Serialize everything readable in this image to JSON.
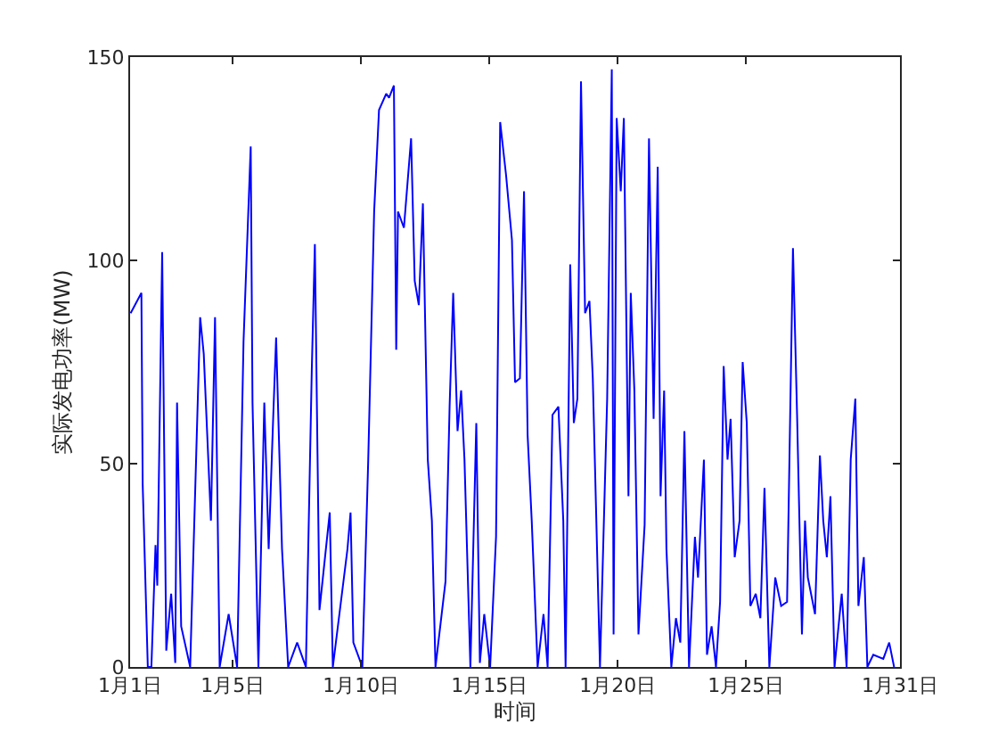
{
  "chart_data": {
    "type": "line",
    "xlabel": "时间",
    "ylabel": "实际发电功率(MW)",
    "xlim": [
      "--01-01",
      "--01-31"
    ],
    "ylim": [
      0,
      150
    ],
    "xticks": [
      {
        "value": "--01-01",
        "label": "1月1日"
      },
      {
        "value": "--01-05",
        "label": "1月5日"
      },
      {
        "value": "--01-10",
        "label": "1月10日"
      },
      {
        "value": "--01-15",
        "label": "1月15日"
      },
      {
        "value": "--01-20",
        "label": "1月20日"
      },
      {
        "value": "--01-25",
        "label": "1月25日"
      },
      {
        "value": "--01-31",
        "label": "1月31日"
      }
    ],
    "yticks": [
      0,
      50,
      100,
      150
    ],
    "grid": false,
    "marker": "none",
    "line_style": "solid",
    "series": [
      {
        "color": "#0000ff",
        "x": [
          "--01-01T00:29",
          "--01-01T10:34",
          "--01-01T11:46",
          "--01-01T16:34",
          "--01-01T19:55",
          "--01-01T23:46",
          "--01-02T01:26",
          "--01-02T06:00",
          "--01-02T09:50",
          "--01-02T14:24",
          "--01-02T18:14",
          "--01-02T19:55",
          "--01-02T23:46",
          "--01-03T08:10",
          "--01-03T17:31",
          "--01-03T20:53",
          "--01-04T03:36",
          "--01-04T07:26",
          "--01-04T11:46",
          "--01-04T20:10",
          "--01-05T04:05",
          "--01-05T10:05",
          "--01-05T16:48",
          "--01-05T18:29",
          "--01-06T00:00",
          "--01-06T05:31",
          "--01-06T09:36",
          "--01-06T13:55",
          "--01-06T16:34",
          "--01-06T22:05",
          "--01-07T03:50",
          "--01-07T12:14",
          "--01-07T20:24",
          "--01-08T01:55",
          "--01-08T04:48",
          "--01-08T09:07",
          "--01-08T18:43",
          "--01-08T21:36",
          "--01-09T11:17",
          "--01-09T14:10",
          "--01-09T16:48",
          "--01-10T01:12",
          "--01-10T06:43",
          "--01-10T12:14",
          "--01-10T16:48",
          "--01-10T23:31",
          "--01-11T02:10",
          "--01-11T06:43",
          "--01-11T08:53",
          "--01-11T10:34",
          "--01-11T16:05",
          "--01-11T22:48",
          "--01-12T02:10",
          "--01-12T06:00",
          "--01-12T09:50",
          "--01-12T14:24",
          "--01-12T18:14",
          "--01-12T21:36",
          "--01-13T06:58",
          "--01-13T10:48",
          "--01-13T14:10",
          "--01-13T18:14",
          "--01-13T21:36",
          "--01-14T00:43",
          "--01-14T06:14",
          "--01-14T11:46",
          "--01-14T15:07",
          "--01-14T19:12",
          "--01-15T00:43",
          "--01-15T06:14",
          "--01-15T10:05",
          "--01-15T15:36",
          "--01-15T21:07",
          "--01-16T00:00",
          "--01-16T04:34",
          "--01-16T08:24",
          "--01-16T11:46",
          "--01-16T15:36",
          "--01-16T21:07",
          "--01-17T02:38",
          "--01-17T06:29",
          "--01-17T11:02",
          "--01-17T16:34",
          "--01-17T21:07",
          "--01-17T23:17",
          "--01-18T03:36",
          "--01-18T06:58",
          "--01-18T10:19",
          "--01-18T13:41",
          "--01-18T17:31",
          "--01-18T21:36",
          "--01-19T00:43",
          "--01-19T07:26",
          "--01-19T14:10",
          "--01-19T18:29",
          "--01-19T20:10",
          "--01-19T23:02",
          "--01-20T02:53",
          "--01-20T05:46",
          "--01-20T10:05",
          "--01-20T12:14",
          "--01-20T15:36",
          "--01-20T19:26",
          "--01-21T01:12",
          "--01-21T05:17",
          "--01-21T09:36",
          "--01-21T13:26",
          "--01-21T16:05",
          "--01-21T19:26",
          "--01-21T21:36",
          "--01-22T02:10",
          "--01-22T06:29",
          "--01-22T10:34",
          "--01-22T14:24",
          "--01-22T18:43",
          "--01-23T00:14",
          "--01-23T03:07",
          "--01-23T08:38",
          "--01-23T11:31",
          "--01-23T15:50",
          "--01-23T19:55",
          "--01-23T23:46",
          "--01-24T03:07",
          "--01-24T06:43",
          "--01-24T09:36",
          "--01-24T13:26",
          "--01-24T18:00",
          "--01-24T20:53",
          "--01-25T00:43",
          "--01-25T04:05",
          "--01-25T09:07",
          "--01-25T13:26",
          "--01-25T17:17",
          "--01-25T21:50",
          "--01-26T03:22",
          "--01-26T08:53",
          "--01-26T14:24",
          "--01-26T19:55",
          "--01-26T23:46",
          "--01-27T04:19",
          "--01-27T07:12",
          "--01-27T09:50",
          "--01-27T16:34",
          "--01-27T21:07",
          "--01-28T00:14",
          "--01-28T03:36",
          "--01-28T06:58",
          "--01-28T10:48",
          "--01-28T17:31",
          "--01-28T22:05",
          "--01-29T01:55",
          "--01-29T06:14",
          "--01-29T09:07",
          "--01-29T14:10",
          "--01-29T17:31",
          "--01-29T23:02",
          "--01-30T08:24",
          "--01-30T13:55",
          "--01-30T18:29"
        ],
        "values": [
          87,
          92,
          45,
          0,
          0,
          30,
          20,
          102,
          4,
          18,
          1,
          65,
          10,
          0,
          86,
          77,
          36,
          86,
          0,
          13,
          0,
          80,
          128,
          65,
          0,
          65,
          29,
          62,
          81,
          29,
          0,
          6,
          0,
          73,
          104,
          14,
          38,
          0,
          29,
          38,
          6,
          0,
          51,
          112,
          137,
          141,
          140,
          143,
          78,
          112,
          108,
          130,
          95,
          89,
          114,
          51,
          36,
          0,
          21,
          64,
          92,
          58,
          68,
          51,
          0,
          60,
          1,
          13,
          0,
          32,
          134,
          121,
          105,
          70,
          71,
          117,
          57,
          36,
          0,
          13,
          0,
          62,
          64,
          36,
          0,
          99,
          60,
          66,
          144,
          87,
          90,
          71,
          0,
          66,
          147,
          8,
          135,
          117,
          135,
          42,
          92,
          68,
          8,
          35,
          130,
          61,
          123,
          42,
          68,
          29,
          0,
          12,
          6,
          58,
          0,
          32,
          22,
          51,
          3,
          10,
          0,
          16,
          74,
          51,
          61,
          27,
          36,
          75,
          60,
          15,
          18,
          12,
          44,
          0,
          22,
          15,
          16,
          103,
          62,
          8,
          36,
          22,
          13,
          52,
          36,
          27,
          42,
          0,
          18,
          0,
          51,
          66,
          15,
          27,
          0,
          3,
          2,
          6,
          0
        ]
      }
    ]
  }
}
